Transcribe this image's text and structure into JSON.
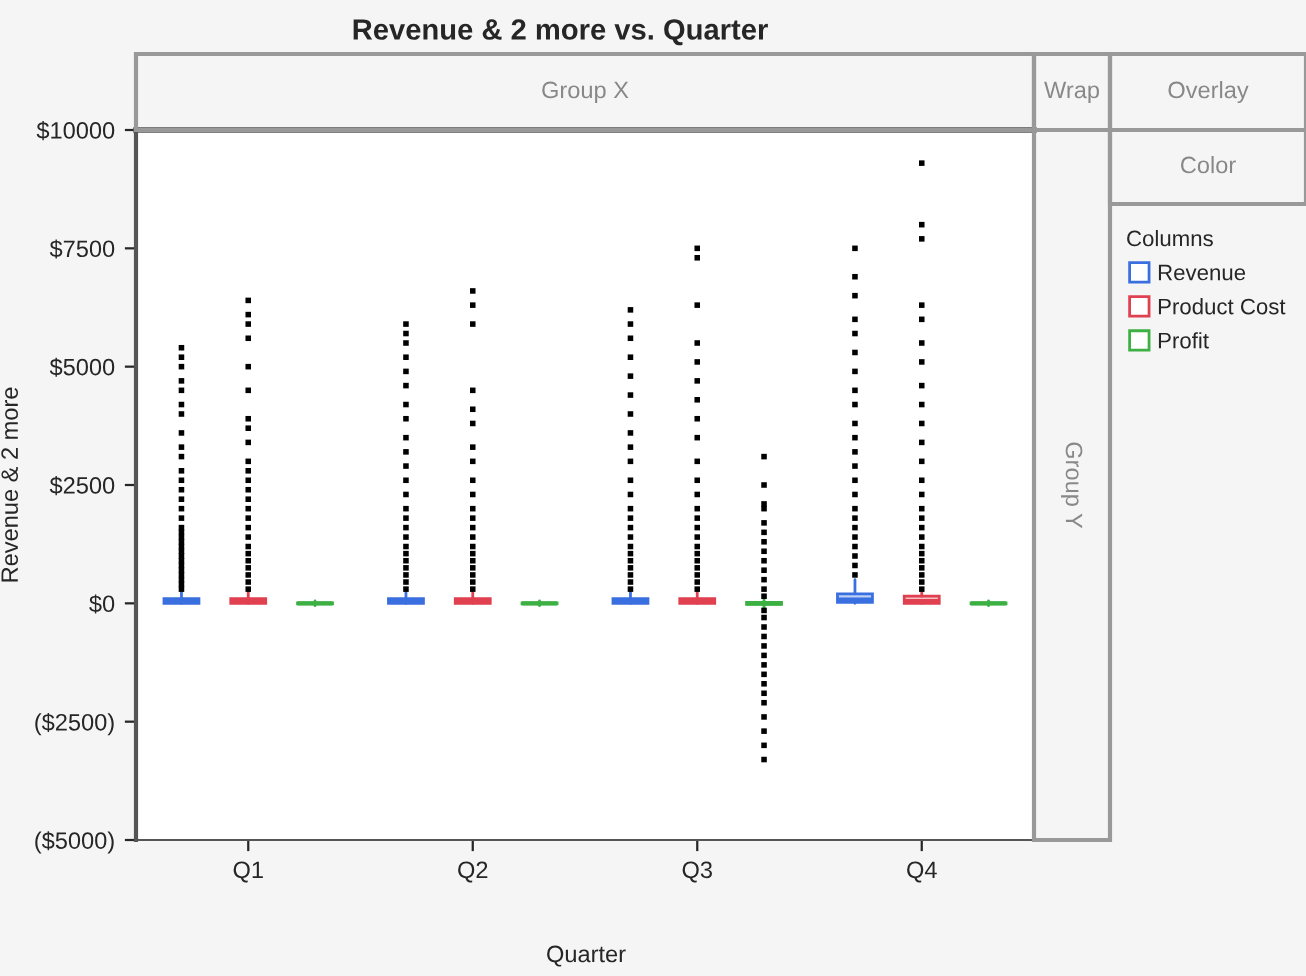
{
  "chart_data": {
    "type": "box",
    "title": "Revenue & 2 more vs. Quarter",
    "xlabel": "Quarter",
    "ylabel": "Revenue & 2 more",
    "legend_title": "Columns",
    "categories": [
      "Q1",
      "Q2",
      "Q3",
      "Q4"
    ],
    "ylim": [
      -5000,
      10000
    ],
    "yticks": [
      {
        "value": -5000,
        "label": "($5000)"
      },
      {
        "value": -2500,
        "label": "($2500)"
      },
      {
        "value": 0,
        "label": "$0"
      },
      {
        "value": 2500,
        "label": "$2500"
      },
      {
        "value": 5000,
        "label": "$5000"
      },
      {
        "value": 7500,
        "label": "$7500"
      },
      {
        "value": 10000,
        "label": "$10000"
      }
    ],
    "grid": false,
    "legend": "right",
    "annotations": [
      "Group X",
      "Wrap",
      "Overlay",
      "Color",
      "Group Y"
    ],
    "series": [
      {
        "name": "Revenue",
        "color": "#3a6fe0",
        "boxes": [
          {
            "low": 0,
            "q1": 0,
            "median": 40,
            "q3": 100,
            "high": 250,
            "outliers": [
              300,
              400,
              500,
              600,
              700,
              800,
              900,
              1000,
              1100,
              1200,
              1300,
              1400,
              1500,
              1600,
              1800,
              2000,
              2200,
              2400,
              2600,
              2800,
              3100,
              3300,
              3600,
              4000,
              4200,
              4500,
              4700,
              5000,
              5200,
              5400
            ]
          },
          {
            "low": 0,
            "q1": 0,
            "median": 40,
            "q3": 100,
            "high": 250,
            "outliers": [
              300,
              450,
              600,
              750,
              900,
              1050,
              1200,
              1400,
              1600,
              1800,
              2000,
              2300,
              2600,
              2900,
              3200,
              3500,
              3900,
              4200,
              4600,
              4900,
              5200,
              5500,
              5700,
              5900
            ]
          },
          {
            "low": 0,
            "q1": 0,
            "median": 40,
            "q3": 100,
            "high": 250,
            "outliers": [
              300,
              450,
              600,
              750,
              900,
              1050,
              1200,
              1400,
              1600,
              1800,
              2000,
              2300,
              2600,
              3000,
              3300,
              3600,
              4000,
              4400,
              4800,
              5200,
              5600,
              5900,
              6200
            ]
          },
          {
            "low": 0,
            "q1": 20,
            "median": 80,
            "q3": 200,
            "high": 500,
            "outliers": [
              600,
              800,
              1000,
              1200,
              1400,
              1600,
              1800,
              2000,
              2300,
              2600,
              2900,
              3200,
              3500,
              3800,
              4200,
              4500,
              4900,
              5300,
              5700,
              6000,
              6500,
              6900,
              7500
            ]
          }
        ]
      },
      {
        "name": "Product Cost",
        "color": "#e0404f",
        "boxes": [
          {
            "low": 0,
            "q1": 0,
            "median": 30,
            "q3": 100,
            "high": 250,
            "outliers": [
              300,
              450,
              600,
              750,
              900,
              1050,
              1200,
              1400,
              1600,
              1800,
              2000,
              2200,
              2400,
              2600,
              2800,
              3000,
              3400,
              3700,
              3900,
              4500,
              5000,
              5600,
              5900,
              6100,
              6400
            ]
          },
          {
            "low": 0,
            "q1": 0,
            "median": 30,
            "q3": 100,
            "high": 250,
            "outliers": [
              300,
              450,
              600,
              750,
              900,
              1050,
              1200,
              1400,
              1600,
              1800,
              2000,
              2300,
              2600,
              3000,
              3300,
              3800,
              4100,
              4500,
              5900,
              6300,
              6600
            ]
          },
          {
            "low": 0,
            "q1": 0,
            "median": 30,
            "q3": 100,
            "high": 250,
            "outliers": [
              300,
              450,
              600,
              750,
              900,
              1050,
              1200,
              1400,
              1600,
              1800,
              2000,
              2300,
              2600,
              3000,
              3500,
              3900,
              4300,
              4700,
              5100,
              5500,
              6300,
              7300,
              7500
            ]
          },
          {
            "low": 0,
            "q1": 0,
            "median": 50,
            "q3": 150,
            "high": 250,
            "outliers": [
              300,
              450,
              600,
              750,
              900,
              1050,
              1200,
              1400,
              1600,
              1800,
              2000,
              2300,
              2600,
              3000,
              3400,
              3800,
              4200,
              4600,
              5100,
              5500,
              6000,
              6300,
              7700,
              8000,
              9300
            ]
          }
        ]
      },
      {
        "name": "Profit",
        "color": "#3cb043",
        "boxes": [
          {
            "low": -50,
            "q1": -10,
            "median": 0,
            "q3": 10,
            "high": 50
          },
          {
            "low": -50,
            "q1": -10,
            "median": 0,
            "q3": 10,
            "high": 50
          },
          {
            "low": -100,
            "q1": -20,
            "median": 0,
            "q3": 20,
            "high": 100,
            "outliers": [
              -3300,
              -3000,
              -2700,
              -2400,
              -2100,
              -1900,
              -1700,
              -1500,
              -1300,
              -1100,
              -900,
              -700,
              -500,
              -300,
              -150,
              150,
              300,
              500,
              700,
              900,
              1100,
              1300,
              1500,
              1700,
              2000,
              2100,
              2500,
              3100
            ]
          },
          {
            "low": -50,
            "q1": -10,
            "median": 0,
            "q3": 10,
            "high": 50
          }
        ]
      }
    ]
  }
}
